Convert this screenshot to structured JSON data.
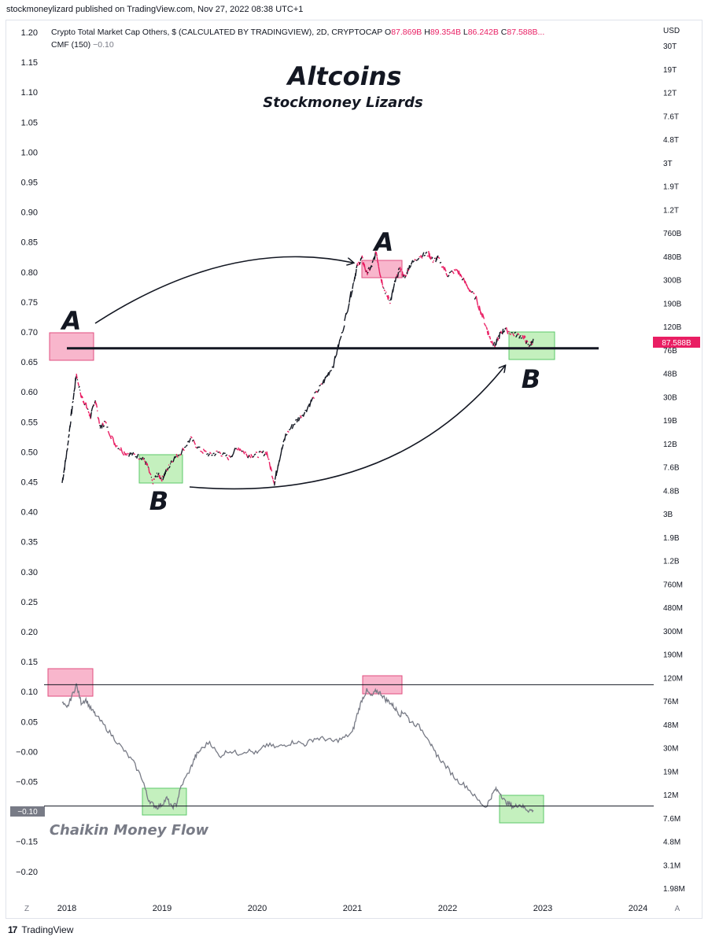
{
  "publisher_line": "stockmoneylizard published on TradingView.com, Nov 27, 2022 08:38 UTC+1",
  "footer_brand": "TradingView",
  "footer_logo": "17",
  "chart_data": {
    "type": "line",
    "symbol": {
      "title": "Crypto Total Market Cap Others, $ (CALCULATED BY TRADINGVIEW), 2D, CRYPTOCAP",
      "o_label": "O",
      "o_value": "87.869B",
      "h_label": "H",
      "h_value": "89.354B",
      "l_label": "L",
      "l_value": "86.242B",
      "c_label": "C",
      "c_value": "87.588B...",
      "indicator": "CMF (150)",
      "indicator_value": "−0.10"
    },
    "title": "Altcoins",
    "subtitle": "Stockmoney Lizards",
    "currency": "USD",
    "last_price_label": "87.588B",
    "cmf_last_label": "−0.10",
    "cmf_label": "Chaikin Money Flow",
    "x_axis_ticks": [
      "2018",
      "2019",
      "2020",
      "2021",
      "2022",
      "2023",
      "2024"
    ],
    "left_axis_ticks": [
      "1.20",
      "1.15",
      "1.10",
      "1.05",
      "1.00",
      "0.95",
      "0.90",
      "0.85",
      "0.80",
      "0.75",
      "0.70",
      "0.65",
      "0.60",
      "0.55",
      "0.50",
      "0.45",
      "0.40",
      "0.35",
      "0.30",
      "0.25",
      "0.20",
      "0.15",
      "0.10",
      "0.05",
      "−0.00",
      "−0.05",
      "−0.10",
      "−0.15",
      "−0.20"
    ],
    "right_axis_ticks": [
      "30T",
      "19T",
      "12T",
      "7.6T",
      "4.8T",
      "3T",
      "1.9T",
      "1.2T",
      "760B",
      "480B",
      "300B",
      "190B",
      "120B",
      "76B",
      "48B",
      "30B",
      "19B",
      "12B",
      "7.6B",
      "4.8B",
      "3B",
      "1.9B",
      "1.2B",
      "760M",
      "480M",
      "300M",
      "190M",
      "120M",
      "76M",
      "48M",
      "30M",
      "19M",
      "12M",
      "7.6M",
      "4.8M",
      "3.1M",
      "1.98M"
    ],
    "corner_left": "Z",
    "corner_right": "A",
    "annotations": [
      "A",
      "A",
      "B",
      "B"
    ],
    "price_series": {
      "name": "Others market cap",
      "scale": "log",
      "x": [
        2017.95,
        2018.0,
        2018.05,
        2018.1,
        2018.15,
        2018.2,
        2018.25,
        2018.3,
        2018.35,
        2018.4,
        2018.5,
        2018.6,
        2018.7,
        2018.8,
        2018.85,
        2018.9,
        2018.95,
        2019.0,
        2019.05,
        2019.1,
        2019.2,
        2019.3,
        2019.4,
        2019.5,
        2019.6,
        2019.7,
        2019.8,
        2019.9,
        2020.0,
        2020.1,
        2020.18,
        2020.22,
        2020.3,
        2020.4,
        2020.5,
        2020.6,
        2020.7,
        2020.8,
        2020.9,
        2021.0,
        2021.05,
        2021.1,
        2021.15,
        2021.2,
        2021.25,
        2021.3,
        2021.35,
        2021.4,
        2021.45,
        2021.5,
        2021.55,
        2021.6,
        2021.7,
        2021.8,
        2021.85,
        2021.9,
        2022.0,
        2022.1,
        2022.2,
        2022.3,
        2022.4,
        2022.45,
        2022.5,
        2022.55,
        2022.6,
        2022.7,
        2022.8,
        2022.85,
        2022.9
      ],
      "y": [
        5.5,
        10,
        22,
        46,
        30,
        25,
        20,
        28,
        16,
        18,
        12,
        10,
        9.5,
        9,
        7.5,
        5.5,
        6.5,
        6,
        7,
        8.5,
        10,
        13,
        10.5,
        9.5,
        10,
        9,
        11,
        9.5,
        9.5,
        10,
        5.5,
        8,
        14,
        18,
        22,
        30,
        40,
        55,
        110,
        250,
        380,
        440,
        330,
        370,
        500,
        300,
        220,
        190,
        280,
        360,
        300,
        380,
        460,
        480,
        420,
        440,
        320,
        350,
        260,
        200,
        120,
        90,
        80,
        100,
        110,
        100,
        95,
        80,
        87.6
      ]
    },
    "cmf_series": {
      "name": "CMF",
      "x": [
        2017.95,
        2018.0,
        2018.05,
        2018.1,
        2018.15,
        2018.2,
        2018.25,
        2018.3,
        2018.4,
        2018.5,
        2018.6,
        2018.7,
        2018.8,
        2018.85,
        2018.9,
        2018.95,
        2019.0,
        2019.05,
        2019.1,
        2019.15,
        2019.2,
        2019.3,
        2019.35,
        2019.4,
        2019.5,
        2019.6,
        2019.7,
        2019.8,
        2019.9,
        2020.0,
        2020.1,
        2020.2,
        2020.3,
        2020.4,
        2020.5,
        2020.6,
        2020.7,
        2020.8,
        2020.9,
        2021.0,
        2021.05,
        2021.1,
        2021.15,
        2021.2,
        2021.25,
        2021.3,
        2021.35,
        2021.4,
        2021.45,
        2021.5,
        2021.55,
        2021.6,
        2021.7,
        2021.8,
        2021.85,
        2021.9,
        2022.0,
        2022.1,
        2022.2,
        2022.3,
        2022.4,
        2022.45,
        2022.5,
        2022.55,
        2022.6,
        2022.65,
        2022.7,
        2022.75,
        2022.8,
        2022.85,
        2022.9
      ],
      "y": [
        0.08,
        0.07,
        0.09,
        0.11,
        0.08,
        0.085,
        0.07,
        0.06,
        0.04,
        0.02,
        0.0,
        -0.02,
        -0.05,
        -0.08,
        -0.09,
        -0.095,
        -0.09,
        -0.08,
        -0.095,
        -0.09,
        -0.06,
        -0.03,
        -0.01,
        0.0,
        0.015,
        -0.01,
        0.0,
        -0.005,
        0.0,
        -0.005,
        0.01,
        0.005,
        0.01,
        0.015,
        0.01,
        0.02,
        0.02,
        0.015,
        0.02,
        0.03,
        0.06,
        0.085,
        0.1,
        0.09,
        0.1,
        0.095,
        0.085,
        0.08,
        0.07,
        0.06,
        0.065,
        0.05,
        0.04,
        0.02,
        0.0,
        -0.01,
        -0.03,
        -0.05,
        -0.06,
        -0.08,
        -0.095,
        -0.08,
        -0.065,
        -0.07,
        -0.085,
        -0.09,
        -0.095,
        -0.09,
        -0.095,
        -0.1,
        -0.1
      ]
    },
    "support_level": 76,
    "cmf_levels": [
      0.11,
      -0.093
    ],
    "colors": {
      "up": "#131722",
      "down": "#e91e63",
      "cmf": "#787b86",
      "red_box": "#f48fb1",
      "green_box": "#a5e89b",
      "price_tag": "#e91e63",
      "cmf_tag": "#787b86"
    }
  }
}
